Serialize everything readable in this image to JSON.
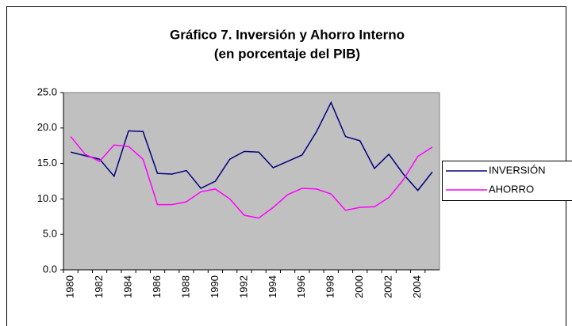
{
  "chart_data": {
    "type": "line",
    "title": "Gráfico 7. Inversión y Ahorro Interno",
    "subtitle": "(en porcentaje del PIB)",
    "categories": [
      "1980",
      null,
      "1982",
      null,
      "1984",
      null,
      "1986",
      null,
      "1988",
      null,
      "1990",
      null,
      "1992",
      null,
      "1994",
      null,
      "1996",
      null,
      "1998",
      null,
      "2000",
      null,
      "2002",
      null,
      "2004",
      null
    ],
    "series": [
      {
        "name": "INVERSIÓN",
        "color": "#000080",
        "values": [
          16.6,
          16.1,
          15.6,
          13.2,
          19.6,
          19.5,
          13.6,
          13.5,
          14.0,
          11.5,
          12.5,
          15.6,
          16.7,
          16.6,
          14.4,
          15.3,
          16.2,
          19.5,
          23.6,
          18.8,
          18.2,
          14.3,
          16.3,
          13.5,
          11.2,
          13.8
        ]
      },
      {
        "name": "AHORRO",
        "color": "#ff00ff",
        "values": [
          18.8,
          16.3,
          15.3,
          17.6,
          17.4,
          15.6,
          9.2,
          9.2,
          9.6,
          11.0,
          11.4,
          10.0,
          7.7,
          7.3,
          8.8,
          10.6,
          11.5,
          11.4,
          10.7,
          8.4,
          8.8,
          8.9,
          10.2,
          12.7,
          16.0,
          17.3
        ]
      }
    ],
    "ylim": [
      0,
      25
    ],
    "yticks": [
      {
        "value": 0,
        "label": "0.0"
      },
      {
        "value": 5,
        "label": "5.0"
      },
      {
        "value": 10,
        "label": "10.0"
      },
      {
        "value": 15,
        "label": "15.0"
      },
      {
        "value": 20,
        "label": "20.0"
      },
      {
        "value": 25,
        "label": "25.0"
      }
    ],
    "plot_background": "#c0c0c0"
  }
}
